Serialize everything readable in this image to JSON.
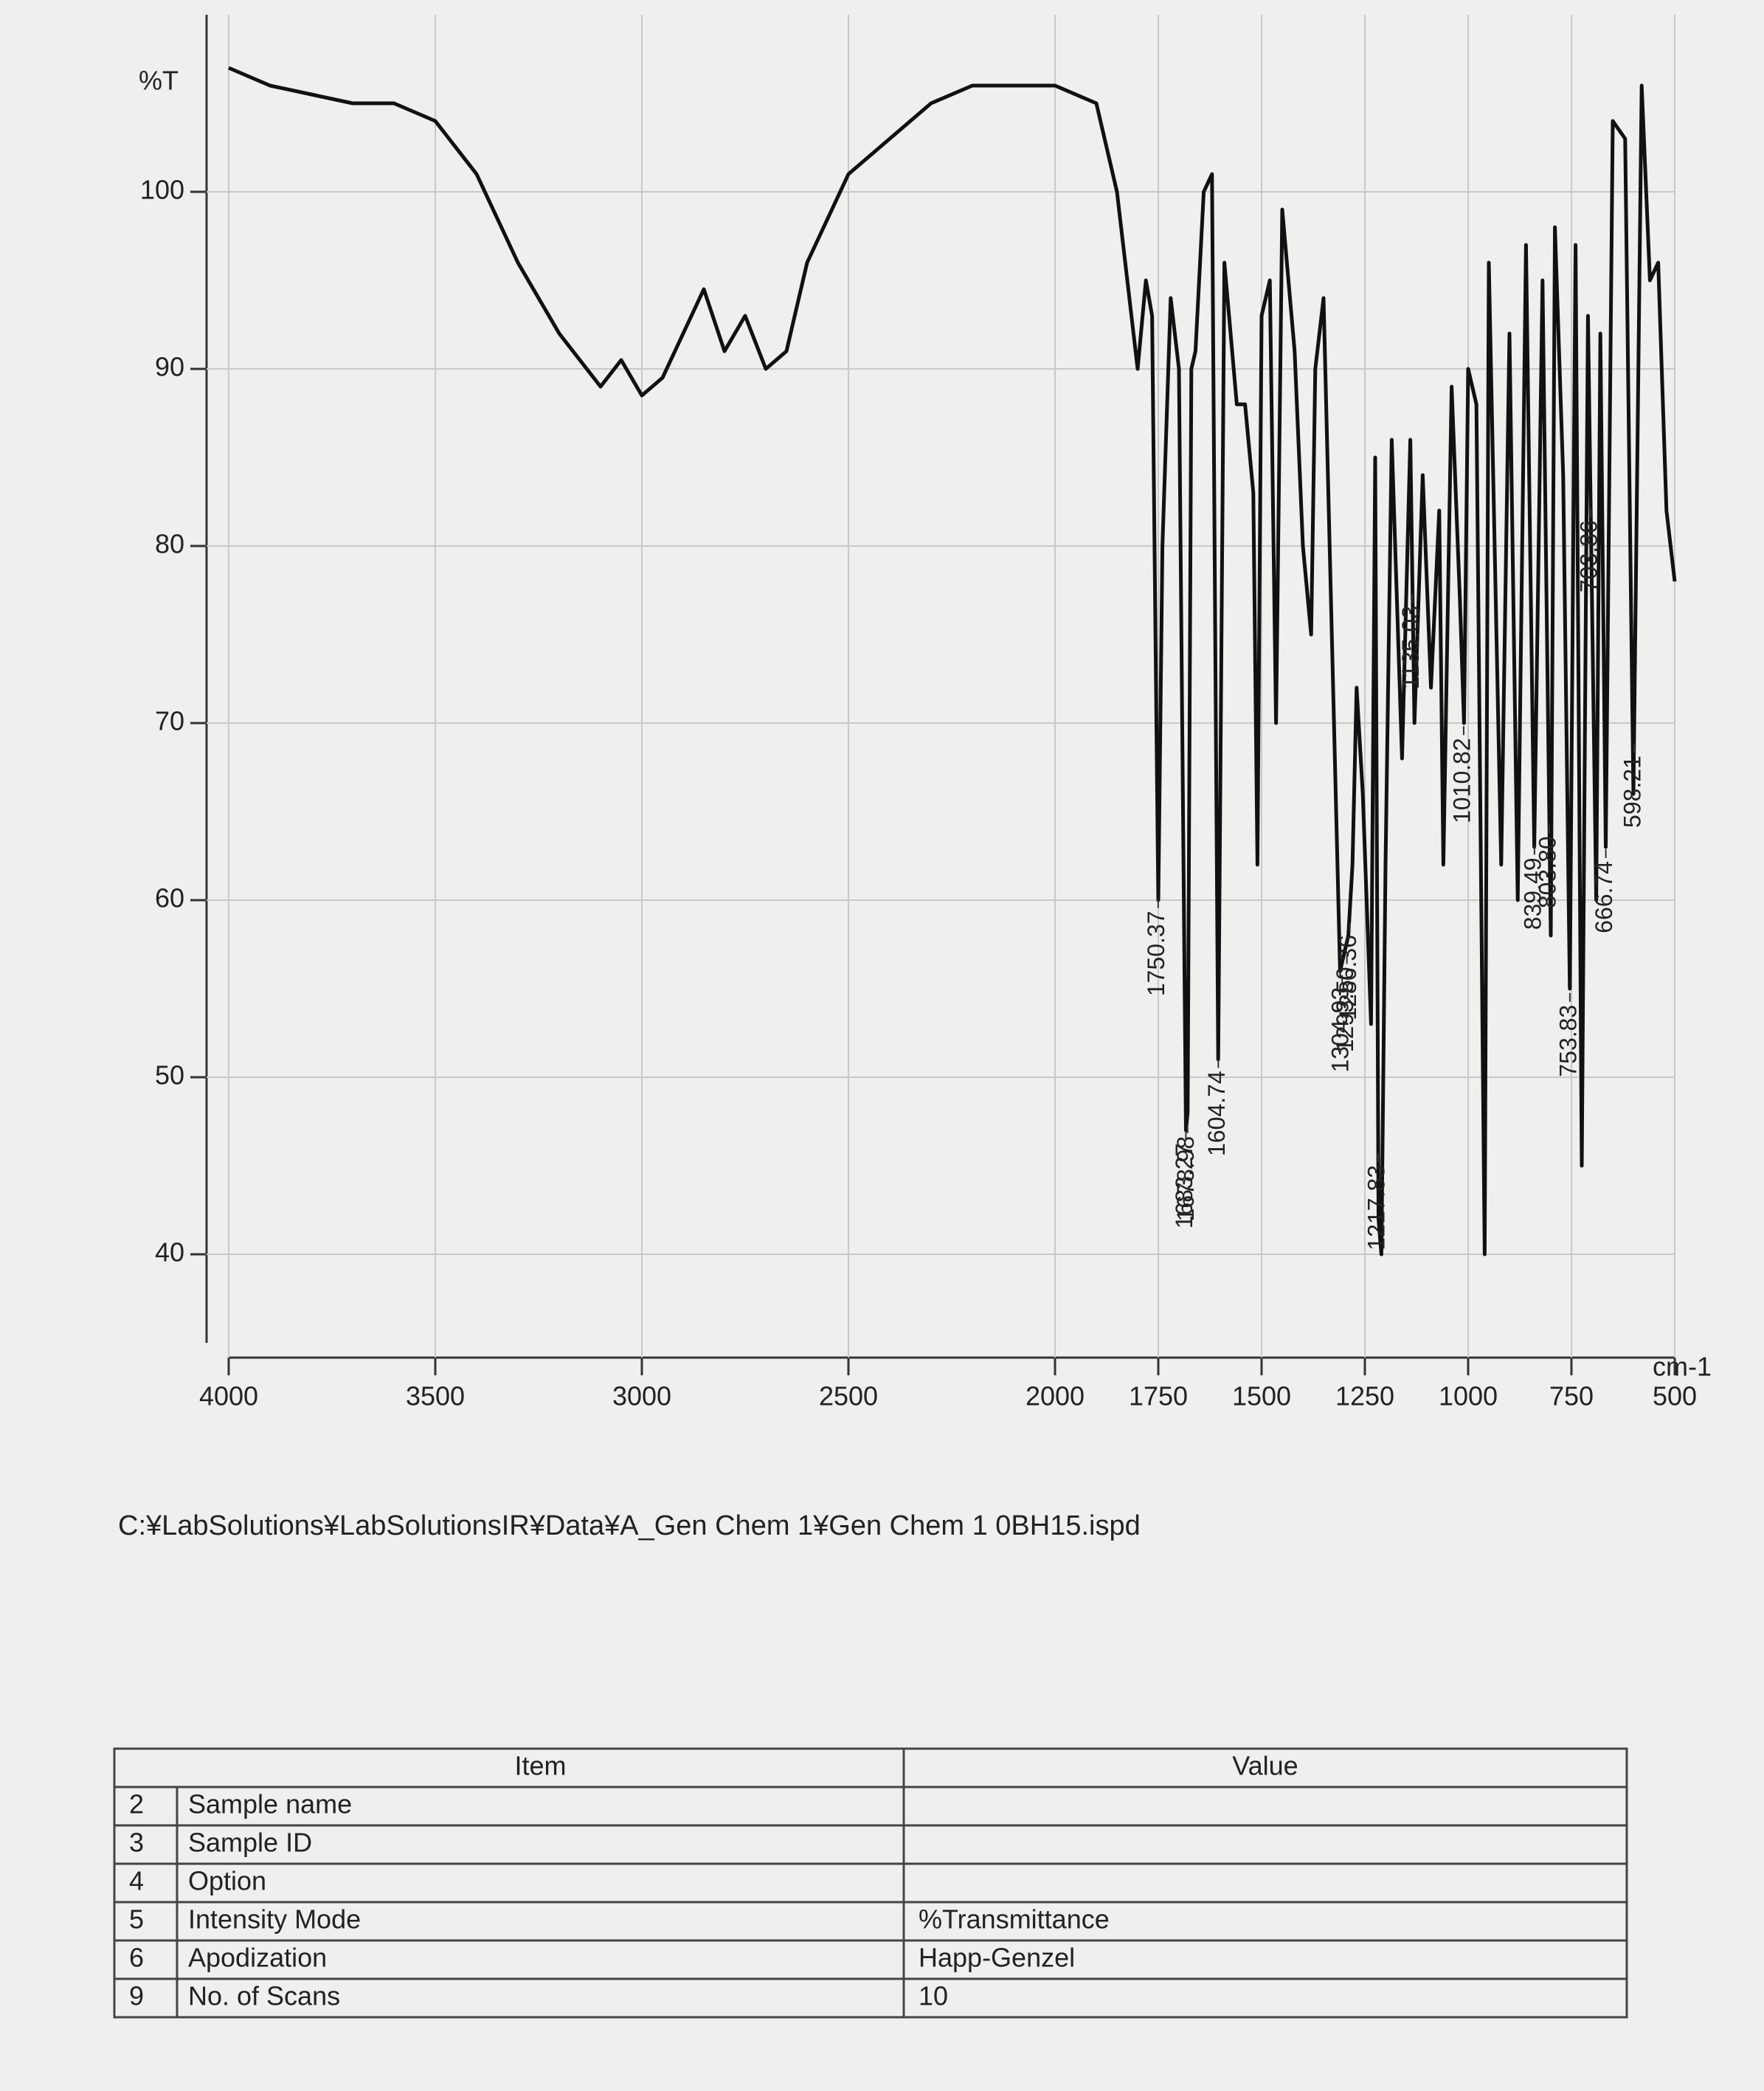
{
  "chart_data": {
    "type": "line",
    "y_label": "%T",
    "x_label": "cm-1",
    "x": [
      4000,
      3900,
      3800,
      3700,
      3600,
      3500,
      3400,
      3300,
      3200,
      3100,
      3050,
      3000,
      2950,
      2900,
      2850,
      2800,
      2750,
      2700,
      2650,
      2600,
      2500,
      2400,
      2300,
      2200,
      2100,
      2000,
      1900,
      1850,
      1800,
      1780,
      1765,
      1750,
      1740,
      1720,
      1700,
      1683,
      1679,
      1670,
      1660,
      1640,
      1620,
      1605,
      1590,
      1560,
      1540,
      1520,
      1510,
      1500,
      1480,
      1465,
      1450,
      1420,
      1400,
      1380,
      1370,
      1350,
      1310,
      1300,
      1290,
      1280,
      1270,
      1255,
      1235,
      1225,
      1217,
      1210,
      1200,
      1185,
      1160,
      1140,
      1130,
      1110,
      1090,
      1070,
      1060,
      1040,
      1020,
      1010,
      1000,
      980,
      960,
      950,
      920,
      900,
      880,
      860,
      840,
      820,
      800,
      790,
      770,
      754,
      740,
      725,
      710,
      690,
      680,
      667,
      650,
      620,
      600,
      580,
      560,
      540,
      520,
      500
    ],
    "values": [
      107,
      106,
      105.5,
      105,
      105,
      104,
      101,
      96,
      92,
      89,
      90.5,
      88.5,
      89.5,
      92,
      94.5,
      91,
      93,
      90,
      91,
      96,
      101,
      103,
      105,
      106,
      106,
      106,
      105,
      100,
      90,
      95,
      93,
      60,
      80,
      94,
      90,
      47,
      48,
      90,
      91,
      100,
      101,
      51,
      96,
      88,
      88,
      83,
      62,
      93,
      95,
      70,
      99,
      91,
      80,
      75,
      90,
      94,
      56,
      57,
      58,
      62,
      72,
      66,
      53,
      85,
      42,
      40,
      62,
      86,
      68,
      86,
      70,
      84,
      72,
      82,
      62,
      89,
      77,
      70,
      90,
      88,
      40,
      96,
      62,
      92,
      60,
      97,
      63,
      95,
      58,
      98,
      84,
      55,
      97,
      45,
      93,
      60,
      92,
      63,
      104,
      103,
      66,
      106,
      95,
      96,
      82,
      78
    ],
    "xlim": [
      4000,
      500
    ],
    "ylim": [
      35,
      110
    ],
    "xticks": [
      4000,
      3500,
      3000,
      2500,
      2000,
      1750,
      1500,
      1250,
      1000,
      750,
      500
    ],
    "yticks": [
      40,
      50,
      60,
      70,
      80,
      90,
      100
    ],
    "grid": true,
    "color": "#111111",
    "peaks": [
      {
        "value": 1750.37,
        "label": "1750.37"
      },
      {
        "value": 1683.27,
        "label": "1683.27"
      },
      {
        "value": 1678.98,
        "label": "1678.98"
      },
      {
        "value": 1604.74,
        "label": "1604.74"
      },
      {
        "value": 1304.93,
        "label": "1304.93"
      },
      {
        "value": 1293.5,
        "label": "1293.50"
      },
      {
        "value": 1286.36,
        "label": "1286.36"
      },
      {
        "value": 1217.83,
        "label": "1217.83"
      },
      {
        "value": 1135.03,
        "label": "1135.03"
      },
      {
        "value": 1010.82,
        "label": "1010.82"
      },
      {
        "value": 839.49,
        "label": "839.49"
      },
      {
        "value": 803.8,
        "label": "803.80"
      },
      {
        "value": 753.83,
        "label": "753.83"
      },
      {
        "value": 703.86,
        "label": "703.86"
      },
      {
        "value": 666.74,
        "label": "666.74"
      },
      {
        "value": 598.21,
        "label": "598.21"
      }
    ]
  },
  "file_path": "C:¥LabSolutions¥LabSolutionsIR¥Data¥A_Gen Chem 1¥Gen Chem 1 0BH15.ispd",
  "table": {
    "header": [
      "Item",
      "Value"
    ],
    "rows": [
      {
        "no": "2",
        "item": "Sample name"
      },
      {
        "no": "3",
        "item": "Sample ID"
      },
      {
        "no": "4",
        "item": "Option"
      },
      {
        "no": "5",
        "item": "Intensity Mode",
        "value": "%Transmittance"
      },
      {
        "no": "6",
        "item": "Apodization",
        "value": "Happ-Genzel"
      },
      {
        "no": "9",
        "item": "No. of Scans",
        "value": "10"
      }
    ]
  }
}
